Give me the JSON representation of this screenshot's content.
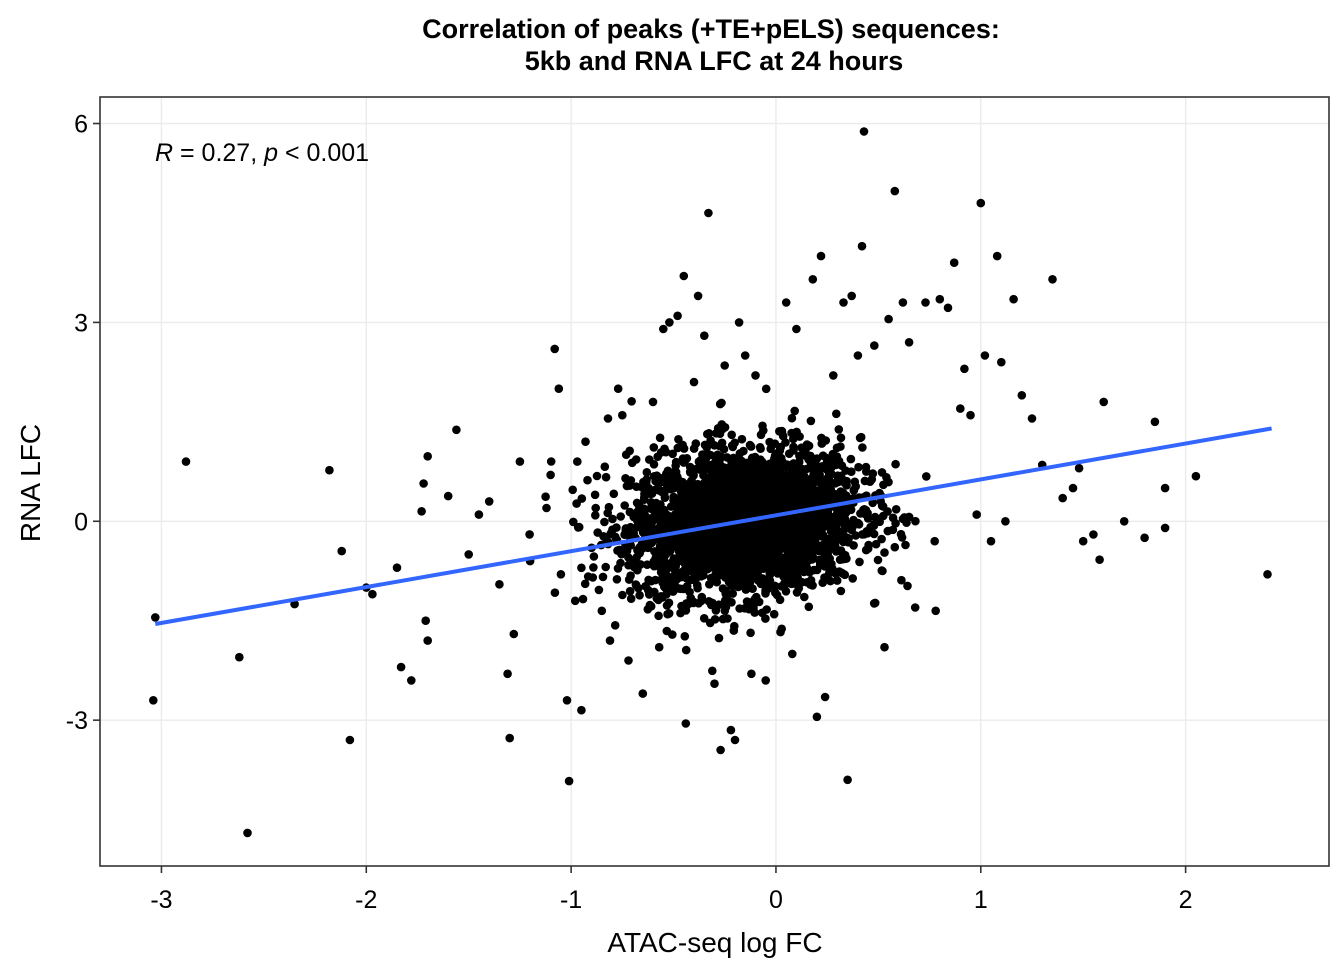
{
  "chart_data": {
    "type": "scatter",
    "title": "Correlation of peaks (+TE+pELS) sequences:",
    "subtitle": "5kb and RNA LFC at 24 hours",
    "xlabel": "ATAC-seq log FC",
    "ylabel": "RNA LFC",
    "xlim": [
      -3.3,
      2.7
    ],
    "ylim": [
      -5.2,
      6.4
    ],
    "xticks": [
      -3,
      -2,
      -1,
      0,
      1,
      2
    ],
    "xtick_labels": [
      "-3",
      "-2",
      "-1",
      "0",
      "1",
      "2"
    ],
    "yticks": [
      -3,
      0,
      3,
      6
    ],
    "ytick_labels": [
      "-3",
      "0",
      "3",
      "6"
    ],
    "grid": true,
    "annotation": {
      "r_symbol": "R",
      "r_value": " = 0.27, ",
      "p_symbol": "p",
      "p_value": " < 0.001"
    },
    "regression_line": {
      "color": "#3366ff",
      "x": [
        -3.03,
        2.42
      ],
      "y": [
        -1.55,
        1.4
      ]
    },
    "point_color": "#000000",
    "dense_cloud": {
      "description_of_points": "about 3000 points concentrated around the origin",
      "count": 3000,
      "x_mean": -0.15,
      "x_sd": 0.28,
      "y_mean": 0.0,
      "y_sd": 0.55
    },
    "points": [
      [
        -3.03,
        -1.45
      ],
      [
        -3.04,
        -2.7
      ],
      [
        -2.88,
        0.9
      ],
      [
        -2.62,
        -2.05
      ],
      [
        -2.58,
        -4.7
      ],
      [
        -2.35,
        -1.25
      ],
      [
        -2.18,
        0.77
      ],
      [
        -2.12,
        -0.45
      ],
      [
        -2.08,
        -3.3
      ],
      [
        -2.0,
        -1.0
      ],
      [
        -1.97,
        -1.1
      ],
      [
        -1.85,
        -0.7
      ],
      [
        -1.83,
        -2.2
      ],
      [
        -1.78,
        -2.4
      ],
      [
        -1.73,
        0.15
      ],
      [
        -1.72,
        0.57
      ],
      [
        -1.71,
        -1.5
      ],
      [
        -1.7,
        -1.8
      ],
      [
        -1.7,
        0.98
      ],
      [
        -1.6,
        0.38
      ],
      [
        -1.56,
        1.38
      ],
      [
        -1.5,
        -0.5
      ],
      [
        -1.45,
        0.1
      ],
      [
        -1.4,
        0.3
      ],
      [
        -1.35,
        -0.95
      ],
      [
        -1.31,
        -2.3
      ],
      [
        -1.3,
        -3.27
      ],
      [
        -1.28,
        -1.7
      ],
      [
        -1.25,
        0.9
      ],
      [
        -1.2,
        -0.6
      ],
      [
        -1.12,
        0.2
      ],
      [
        -1.1,
        0.7
      ],
      [
        -1.06,
        2.0
      ],
      [
        -1.05,
        -0.8
      ],
      [
        -1.02,
        -2.7
      ],
      [
        -1.01,
        -3.92
      ],
      [
        -0.98,
        -1.2
      ],
      [
        -0.97,
        0.9
      ],
      [
        -0.95,
        -2.85
      ],
      [
        -0.93,
        1.2
      ],
      [
        -0.92,
        0.62
      ],
      [
        -0.9,
        -0.4
      ],
      [
        -0.88,
        0.2
      ],
      [
        -0.85,
        -1.35
      ],
      [
        -0.82,
        1.55
      ],
      [
        -0.81,
        -1.8
      ],
      [
        -0.77,
        2.0
      ],
      [
        -0.75,
        1.6
      ],
      [
        -0.72,
        -2.1
      ],
      [
        -1.08,
        2.6
      ],
      [
        -0.65,
        -2.6
      ],
      [
        -0.6,
        1.8
      ],
      [
        -0.57,
        -1.9
      ],
      [
        -0.55,
        2.9
      ],
      [
        -0.52,
        3.0
      ],
      [
        -0.48,
        3.1
      ],
      [
        -0.45,
        3.7
      ],
      [
        -0.44,
        -3.05
      ],
      [
        -0.4,
        2.1
      ],
      [
        -0.38,
        3.4
      ],
      [
        -0.35,
        2.8
      ],
      [
        -0.33,
        4.65
      ],
      [
        -0.3,
        -2.45
      ],
      [
        -0.27,
        -3.45
      ],
      [
        -0.25,
        2.35
      ],
      [
        -0.22,
        -3.15
      ],
      [
        -0.2,
        -3.3
      ],
      [
        -0.18,
        3.0
      ],
      [
        -0.15,
        2.5
      ],
      [
        -0.12,
        -2.3
      ],
      [
        -0.1,
        2.2
      ],
      [
        -0.05,
        -2.4
      ],
      [
        0.05,
        3.3
      ],
      [
        0.08,
        -2.0
      ],
      [
        0.1,
        2.9
      ],
      [
        0.18,
        3.65
      ],
      [
        0.2,
        -2.95
      ],
      [
        0.22,
        4.0
      ],
      [
        0.24,
        -2.65
      ],
      [
        0.28,
        2.2
      ],
      [
        0.33,
        3.3
      ],
      [
        0.35,
        -3.9
      ],
      [
        0.37,
        3.4
      ],
      [
        0.4,
        2.5
      ],
      [
        0.42,
        4.15
      ],
      [
        0.43,
        5.88
      ],
      [
        0.48,
        2.65
      ],
      [
        0.53,
        -1.9
      ],
      [
        0.55,
        3.05
      ],
      [
        0.58,
        4.98
      ],
      [
        0.62,
        3.3
      ],
      [
        0.65,
        2.7
      ],
      [
        0.68,
        -1.3
      ],
      [
        0.73,
        3.3
      ],
      [
        0.78,
        -1.35
      ],
      [
        0.8,
        3.35
      ],
      [
        0.84,
        3.22
      ],
      [
        0.87,
        3.9
      ],
      [
        0.9,
        1.7
      ],
      [
        0.92,
        2.3
      ],
      [
        0.95,
        1.6
      ],
      [
        0.98,
        0.1
      ],
      [
        1.0,
        4.8
      ],
      [
        1.02,
        2.5
      ],
      [
        1.05,
        -0.3
      ],
      [
        1.08,
        4.0
      ],
      [
        1.1,
        2.4
      ],
      [
        1.12,
        0.0
      ],
      [
        1.16,
        3.35
      ],
      [
        1.2,
        1.9
      ],
      [
        1.25,
        1.55
      ],
      [
        1.3,
        0.85
      ],
      [
        1.35,
        3.65
      ],
      [
        1.4,
        0.35
      ],
      [
        1.45,
        0.5
      ],
      [
        1.48,
        0.8
      ],
      [
        1.5,
        -0.3
      ],
      [
        1.55,
        -0.2
      ],
      [
        1.6,
        1.8
      ],
      [
        1.58,
        -0.58
      ],
      [
        1.7,
        0.0
      ],
      [
        1.8,
        -0.25
      ],
      [
        1.85,
        1.5
      ],
      [
        1.9,
        0.5
      ],
      [
        1.9,
        -0.1
      ],
      [
        2.05,
        0.68
      ],
      [
        2.4,
        -0.8
      ]
    ]
  }
}
